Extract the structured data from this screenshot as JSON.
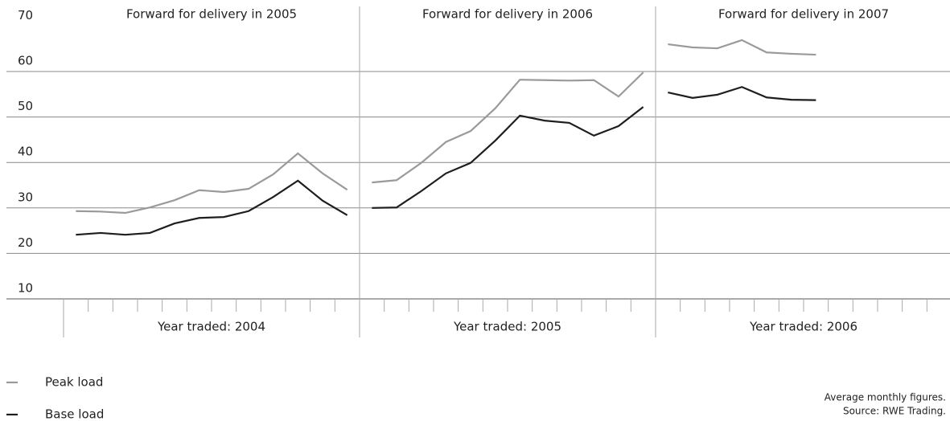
{
  "chart_data": {
    "type": "line",
    "ylim": [
      10,
      70
    ],
    "yticks": [
      10,
      20,
      30,
      40,
      50,
      60,
      70
    ],
    "panels": [
      {
        "title": "Forward for delivery in 2005",
        "xlabel": "Year traded: 2004",
        "categories": [
          null,
          null,
          null,
          null,
          null,
          null,
          null,
          null,
          null,
          null,
          null,
          null
        ]
      },
      {
        "title": "Forward for delivery in 2006",
        "xlabel": "Year traded: 2005",
        "categories": [
          null,
          null,
          null,
          null,
          null,
          null,
          null,
          null,
          null,
          null,
          null,
          null
        ]
      },
      {
        "title": "Forward for delivery in 2007",
        "xlabel": "Year traded: 2006",
        "categories": [
          null,
          null,
          null,
          null,
          null,
          null,
          null,
          null,
          null,
          null,
          null,
          null
        ]
      }
    ],
    "series": [
      {
        "name": "Peak load",
        "color": "#9a9a9a",
        "values": [
          [
            29.3,
            29.2,
            28.9,
            30.1,
            31.7,
            33.9,
            33.5,
            34.2,
            37.4,
            42.0,
            37.6,
            34.0
          ],
          [
            35.6,
            36.1,
            39.9,
            44.5,
            46.9,
            51.9,
            58.2,
            58.1,
            58.0,
            58.1,
            54.5,
            59.8
          ],
          [
            66.0,
            65.3,
            65.1,
            66.9,
            64.2,
            63.9,
            63.7,
            null,
            null,
            null,
            null,
            null
          ]
        ]
      },
      {
        "name": "Base load",
        "color": "#1e1e1e",
        "values": [
          [
            24.1,
            24.5,
            24.1,
            24.5,
            26.6,
            27.8,
            28.0,
            29.3,
            32.4,
            36.0,
            31.6,
            28.4
          ],
          [
            30.0,
            30.1,
            33.7,
            37.6,
            39.9,
            44.8,
            50.3,
            49.2,
            48.7,
            45.9,
            48.0,
            52.2
          ],
          [
            55.4,
            54.2,
            54.9,
            56.6,
            54.3,
            53.8,
            53.7,
            null,
            null,
            null,
            null,
            null
          ]
        ]
      }
    ],
    "notes": [
      "Average monthly figures.",
      "Source: RWE Trading."
    ]
  }
}
